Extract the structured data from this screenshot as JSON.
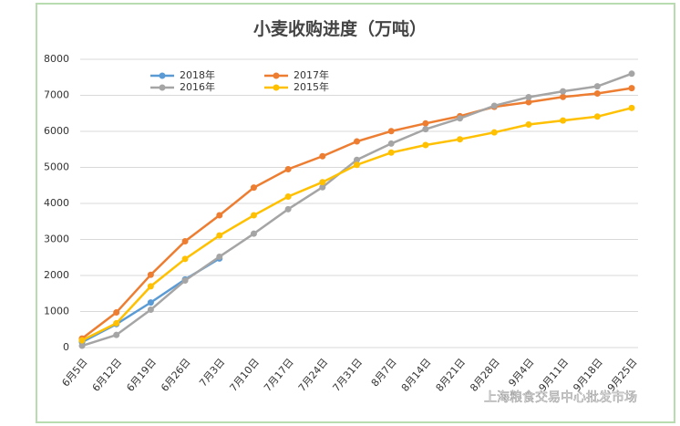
{
  "chart_data": {
    "type": "line",
    "title": "小麦收购进度（万吨）",
    "categories": [
      "6月5日",
      "6月12日",
      "6月19日",
      "6月26日",
      "7月3日",
      "7月10日",
      "7月17日",
      "7月24日",
      "7月31日",
      "8月7日",
      "8月14日",
      "8月21日",
      "8月28日",
      "9月4日",
      "9月11日",
      "9月18日",
      "9月25日"
    ],
    "series": [
      {
        "name": "2018年",
        "color": "#5b9bd5",
        "values": [
          150,
          650,
          1250,
          1890,
          2470,
          null,
          null,
          null,
          null,
          null,
          null,
          null,
          null,
          null,
          null,
          null,
          null
        ]
      },
      {
        "name": "2017年",
        "color": "#ed7d31",
        "values": [
          250,
          975,
          2020,
          2950,
          3670,
          4440,
          4950,
          5310,
          5720,
          6005,
          6220,
          6420,
          6680,
          6810,
          6955,
          7050,
          7200
        ]
      },
      {
        "name": "2016年",
        "color": "#a5a5a5",
        "values": [
          50,
          350,
          1050,
          1860,
          2520,
          3160,
          3840,
          4450,
          5210,
          5660,
          6060,
          6360,
          6710,
          6950,
          7110,
          7250,
          7600
        ]
      },
      {
        "name": "2015年",
        "color": "#ffc000",
        "values": [
          200,
          675,
          1700,
          2460,
          3110,
          3670,
          4190,
          4590,
          5070,
          5410,
          5620,
          5780,
          5970,
          6190,
          6300,
          6410,
          6650
        ]
      }
    ],
    "ylim": [
      0,
      8000
    ],
    "yticks": [
      0,
      1000,
      2000,
      3000,
      4000,
      5000,
      6000,
      7000,
      8000
    ],
    "grid": true,
    "legend": "top-left",
    "watermark": "上海粮食交易中心批发市场"
  }
}
